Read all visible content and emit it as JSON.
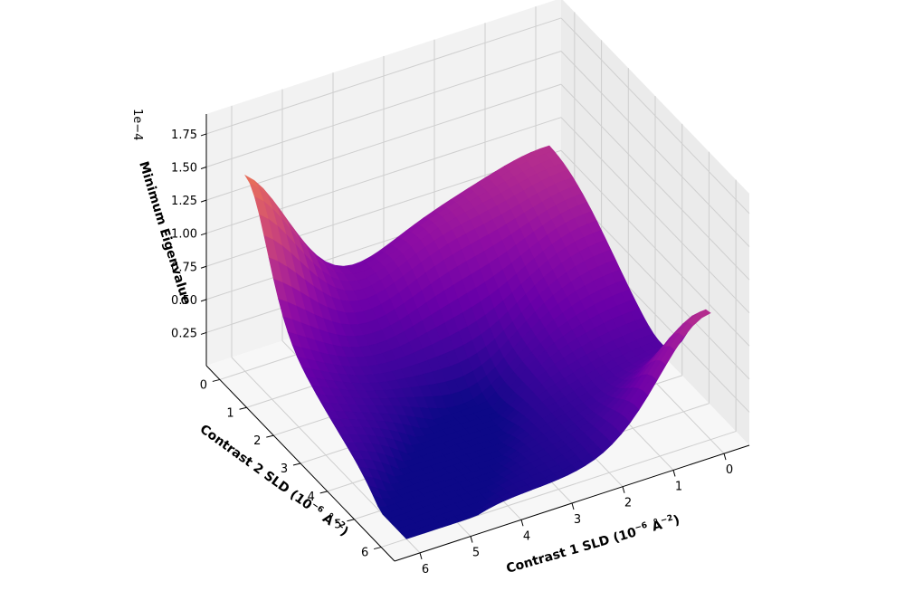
{
  "chart_data": {
    "type": "surface3d",
    "colormap": "plasma",
    "zlabel": "Minimum Eigenvalue",
    "x1label": "Contrast 1 SLD (10",
    "x1label_sup": "−6",
    "x1label_mid": " Å",
    "x1label_sup2": "−2",
    "x1label_end": ")",
    "x2label": "Contrast 2 SLD (10",
    "x2label_sup": "−6",
    "x2label_mid": " Å",
    "x2label_sup2": "−2",
    "x2label_end": ")",
    "z_offset_label": "1e−4",
    "x1_ticks": [
      "0",
      "1",
      "2",
      "3",
      "4",
      "5",
      "6"
    ],
    "x2_ticks": [
      "0",
      "1",
      "2",
      "3",
      "4",
      "5",
      "6"
    ],
    "z_ticks": [
      "0.25",
      "0.50",
      "0.75",
      "1.00",
      "1.25",
      "1.50",
      "1.75"
    ],
    "z_tick_values": [
      0.25,
      0.5,
      0.75,
      1.0,
      1.25,
      1.5,
      1.75
    ],
    "x1_range": [
      -0.5,
      6.5
    ],
    "x2_range": [
      -0.5,
      6.5
    ],
    "z_range": [
      0.0,
      1.9
    ],
    "z_max": 1.85,
    "z_min": 0.0,
    "grid": true
  }
}
